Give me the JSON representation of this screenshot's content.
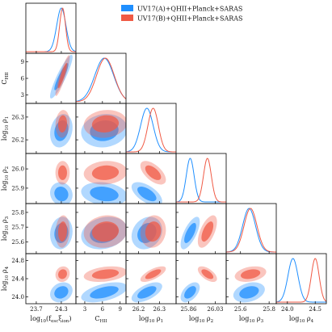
{
  "chart_data": {
    "type": "corner-plot",
    "params": [
      {
        "key": "fesc",
        "label": "log10(fesc ξion)",
        "label_main": "log",
        "label_sub": "10",
        "label_rest": "(f",
        "label_sub2": "esc",
        "label_tail": "ξion)",
        "ticks": [
          23.7,
          24.3
        ],
        "range": [
          23.45,
          24.65
        ]
      },
      {
        "key": "chii",
        "label": "C_HII",
        "ticks": [
          3,
          6,
          9
        ],
        "range": [
          1.5,
          10.0
        ]
      },
      {
        "key": "rho1",
        "label": "log10 ρ1",
        "ticks": [
          26.2,
          26.3
        ],
        "range": [
          26.14,
          26.38
        ]
      },
      {
        "key": "rho2",
        "label": "log10 ρ2",
        "ticks": [
          25.86,
          26.03
        ],
        "range": [
          25.78,
          26.1
        ]
      },
      {
        "key": "rho3",
        "label": "log10 ρ3",
        "ticks": [
          25.6,
          25.8
        ],
        "range": [
          25.5,
          25.85
        ]
      },
      {
        "key": "rho4",
        "label": "log10 ρ4",
        "ticks": [
          24.0,
          24.5
        ],
        "range": [
          23.8,
          24.7
        ]
      }
    ],
    "ytick_labels": {
      "chii": [
        "9",
        "6",
        "3"
      ],
      "rho1": [
        "26.3",
        "26.2"
      ],
      "rho2": [
        "26.0",
        "25.9"
      ],
      "rho3": [
        "25.8",
        "25.7",
        "25.6"
      ],
      "rho4": [
        "24.8",
        "24.4",
        "24.0"
      ]
    },
    "ytick_values": {
      "chii": [
        9,
        6,
        3
      ],
      "rho1": [
        26.3,
        26.2
      ],
      "rho2": [
        26.0,
        25.9
      ],
      "rho3": [
        25.8,
        25.7,
        25.6
      ],
      "rho4": [
        24.8,
        24.4,
        24.0
      ]
    },
    "yranges": {
      "chii": [
        1.5,
        10.5
      ],
      "rho1": [
        26.14,
        26.36
      ],
      "rho2": [
        25.82,
        26.08
      ],
      "rho3": [
        25.52,
        25.86
      ],
      "rho4": [
        23.85,
        24.95
      ]
    },
    "xtick_labels": {
      "fesc": [
        "23.7",
        "24.3"
      ],
      "chii": [
        "3",
        "6",
        "9"
      ],
      "rho1": [
        "26.2",
        "26.3"
      ],
      "rho2": [
        "25.86",
        "26.03"
      ],
      "rho3": [
        "25.6",
        "25.8"
      ],
      "rho4": [
        "24.0",
        "24.5"
      ]
    },
    "series": [
      {
        "name": "UV17(A)+QHII+Planck+SARAS",
        "color": "#1f8fff",
        "means": {
          "fesc": 24.3,
          "chii": 6.3,
          "rho1": 26.24,
          "rho2": 25.87,
          "rho3": 25.66,
          "rho4": 24.1
        },
        "sigmas": {
          "fesc": 0.11,
          "chii": 1.6,
          "rho1": 0.03,
          "rho2": 0.025,
          "rho3": 0.045,
          "rho4": 0.09
        }
      },
      {
        "name": "UV17(B)+QHII+Planck+SARAS",
        "color": "#f05a45",
        "means": {
          "fesc": 24.33,
          "chii": 6.5,
          "rho1": 26.27,
          "rho2": 25.98,
          "rho3": 25.67,
          "rho4": 24.5
        },
        "sigmas": {
          "fesc": 0.07,
          "chii": 1.5,
          "rho1": 0.025,
          "rho2": 0.025,
          "rho3": 0.045,
          "rho4": 0.07
        }
      }
    ],
    "legend_position": "top-right"
  }
}
